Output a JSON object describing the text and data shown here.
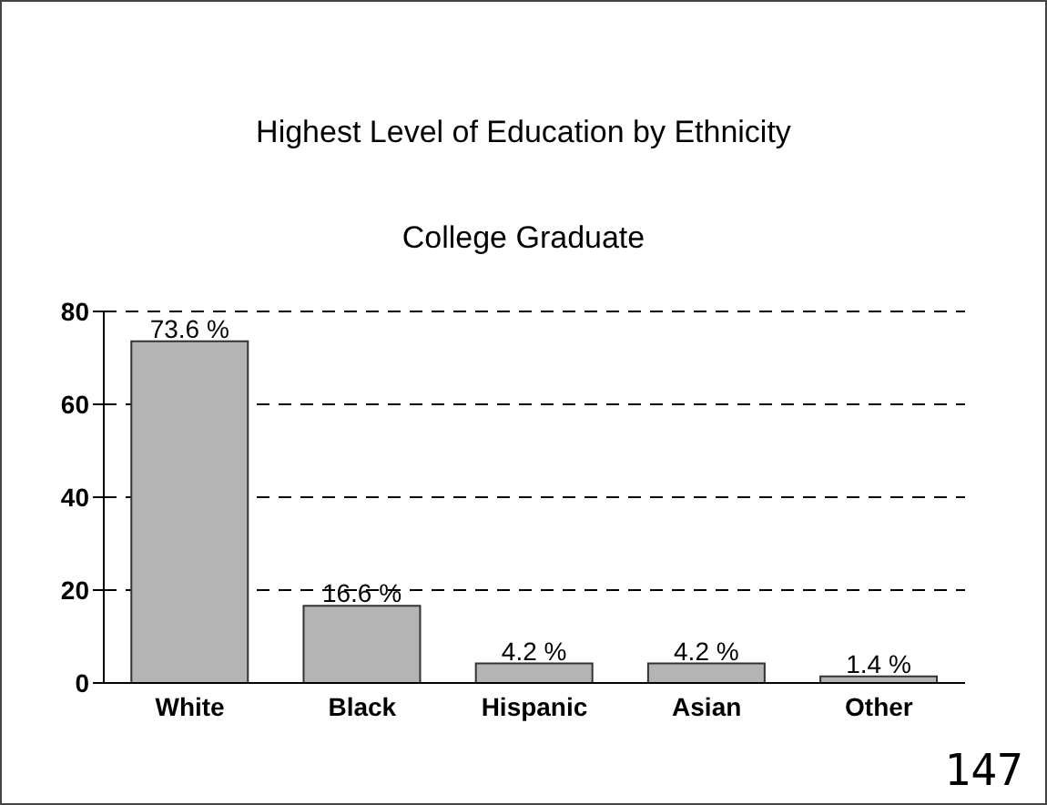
{
  "chart_data": {
    "type": "bar",
    "title": "Highest Level of Education by Ethnicity",
    "subtitle": "College Graduate",
    "categories": [
      "White",
      "Black",
      "Hispanic",
      "Asian",
      "Other"
    ],
    "values": [
      73.6,
      16.6,
      4.2,
      4.2,
      1.4
    ],
    "value_labels": [
      "73.6 %",
      "16.6 %",
      "4.2 %",
      "4.2 %",
      "1.4 %"
    ],
    "color": "#b4b4b4",
    "ylim": [
      0,
      80
    ],
    "yticks": [
      0,
      20,
      40,
      60,
      80
    ],
    "grid": "y",
    "line_style": "dashed",
    "annotations": [
      "147"
    ]
  }
}
